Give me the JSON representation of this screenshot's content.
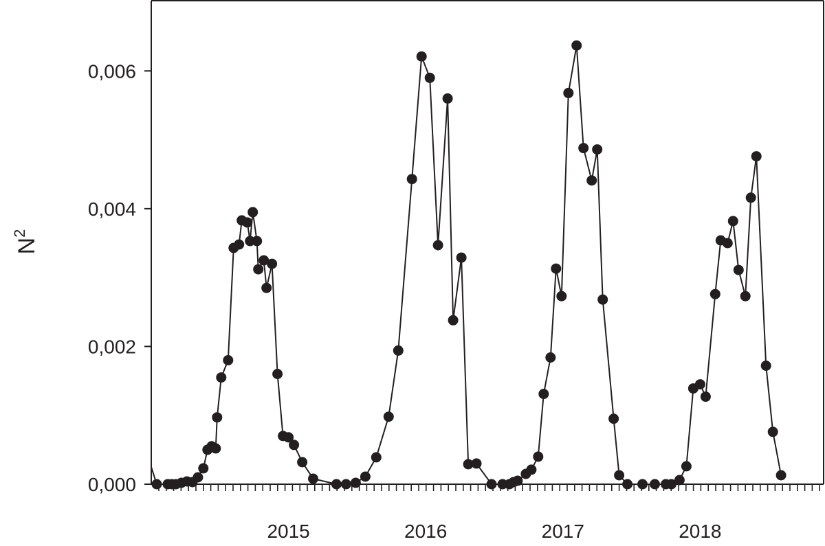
{
  "chart_data": {
    "type": "line",
    "title": "",
    "xlabel": "",
    "ylabel": "N",
    "ylabel_superscript": "2",
    "x_ticks": [
      "2015",
      "2016",
      "2017",
      "2018"
    ],
    "x_tick_values": [
      2015.0,
      2016.0,
      2017.0,
      2018.0
    ],
    "y_ticks": [
      "0,000",
      "0,002",
      "0,004",
      "0,006"
    ],
    "y_tick_values": [
      0.0,
      0.002,
      0.004,
      0.006
    ],
    "xlim": [
      2014.0,
      2018.9
    ],
    "ylim": [
      0.0,
      0.007
    ],
    "grid": false,
    "legend": "none",
    "series": [
      {
        "marker": "circle",
        "color": "#231f20",
        "points": [
          {
            "x": 2014.0,
            "y": 0.00025,
            "marker": false
          },
          [
            2014.04,
            0.0
          ],
          [
            2014.12,
            0.0
          ],
          [
            2014.15,
            0.0
          ],
          [
            2014.18,
            0.0
          ],
          [
            2014.22,
            2e-05
          ],
          [
            2014.26,
            4e-05
          ],
          [
            2014.3,
            3e-05
          ],
          [
            2014.34,
            0.0001
          ],
          [
            2014.38,
            0.00023
          ],
          [
            2014.41,
            0.0005
          ],
          [
            2014.44,
            0.00055
          ],
          [
            2014.47,
            0.00052
          ],
          [
            2014.48,
            0.00097
          ],
          [
            2014.51,
            0.00155
          ],
          [
            2014.56,
            0.0018
          ],
          [
            2014.6,
            0.00343
          ],
          [
            2014.64,
            0.00348
          ],
          [
            2014.66,
            0.00383
          ],
          [
            2014.7,
            0.0038
          ],
          [
            2014.72,
            0.00353
          ],
          [
            2014.74,
            0.00395
          ],
          [
            2014.77,
            0.00353
          ],
          [
            2014.78,
            0.00312
          ],
          [
            2014.82,
            0.00325
          ],
          [
            2014.84,
            0.00285
          ],
          [
            2014.88,
            0.0032
          ],
          [
            2014.92,
            0.0016
          ],
          [
            2014.96,
            0.0007
          ],
          [
            2015.0,
            0.00068
          ],
          [
            2015.04,
            0.00057
          ],
          [
            2015.1,
            0.00032
          ],
          [
            2015.18,
            8e-05
          ],
          [
            2015.35,
            0.0
          ],
          [
            2015.42,
            0.0
          ],
          [
            2015.49,
            2e-05
          ],
          [
            2015.56,
            0.00011
          ],
          [
            2015.64,
            0.00039
          ],
          [
            2015.73,
            0.00098
          ],
          [
            2015.8,
            0.00194
          ],
          [
            2015.9,
            0.00443
          ],
          [
            2015.97,
            0.00621
          ],
          [
            2016.03,
            0.0059
          ],
          [
            2016.09,
            0.00347
          ],
          [
            2016.16,
            0.0056
          ],
          [
            2016.2,
            0.00238
          ],
          [
            2016.26,
            0.00329
          ],
          [
            2016.31,
            0.00029
          ],
          [
            2016.37,
            0.0003
          ],
          [
            2016.48,
            0.0
          ],
          [
            2016.56,
            0.0
          ],
          [
            2016.61,
            0.0
          ],
          [
            2016.64,
            3e-05
          ],
          [
            2016.67,
            5e-05
          ],
          [
            2016.73,
            0.00015
          ],
          [
            2016.77,
            0.00021
          ],
          [
            2016.82,
            0.0004
          ],
          [
            2016.86,
            0.00131
          ],
          [
            2016.91,
            0.00184
          ],
          [
            2016.95,
            0.00313
          ],
          [
            2016.99,
            0.00273
          ],
          [
            2017.04,
            0.00568
          ],
          [
            2017.1,
            0.00637
          ],
          [
            2017.15,
            0.00488
          ],
          [
            2017.21,
            0.00441
          ],
          [
            2017.25,
            0.00486
          ],
          [
            2017.29,
            0.00268
          ],
          [
            2017.37,
            0.00095
          ],
          [
            2017.41,
            0.00013
          ],
          [
            2017.47,
            0.0
          ],
          [
            2017.58,
            0.0
          ],
          [
            2017.67,
            0.0
          ],
          [
            2017.75,
            0.0
          ],
          [
            2017.79,
            0.0
          ],
          [
            2017.85,
            6e-05
          ],
          [
            2017.9,
            0.00026
          ],
          [
            2017.95,
            0.00139
          ],
          [
            2018.0,
            0.00145
          ],
          [
            2018.04,
            0.00127
          ],
          [
            2018.11,
            0.00276
          ],
          [
            2018.15,
            0.00354
          ],
          [
            2018.2,
            0.0035
          ],
          [
            2018.24,
            0.00382
          ],
          [
            2018.28,
            0.00311
          ],
          [
            2018.33,
            0.00273
          ],
          [
            2018.37,
            0.00416
          ],
          [
            2018.41,
            0.00476
          ],
          [
            2018.48,
            0.00172
          ],
          [
            2018.53,
            0.00076
          ],
          [
            2018.59,
            0.00013
          ]
        ]
      }
    ]
  }
}
